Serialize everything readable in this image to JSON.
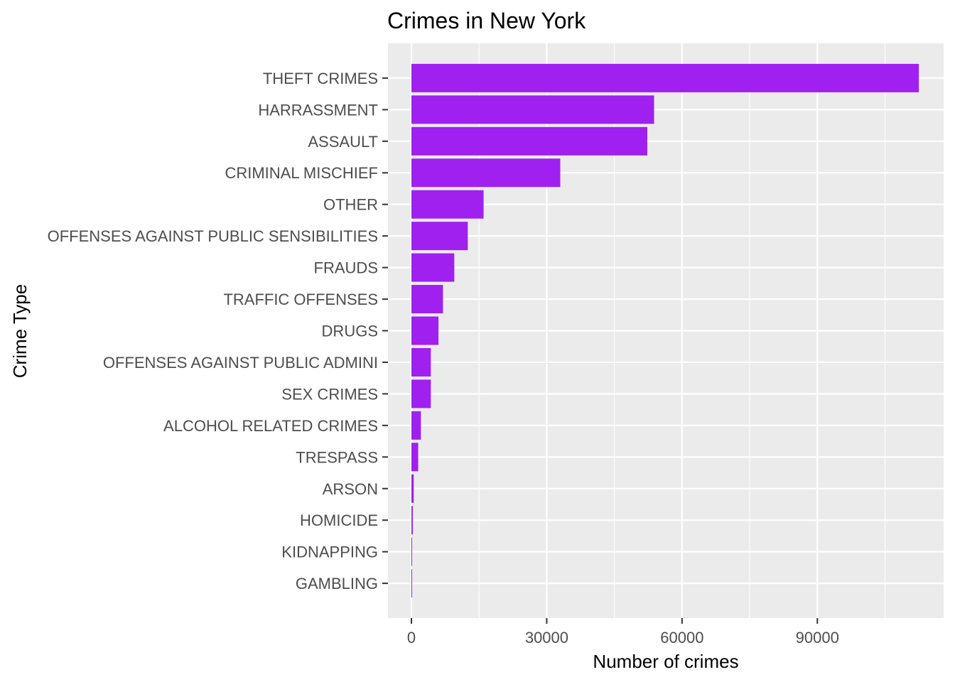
{
  "chart_data": {
    "type": "bar",
    "orientation": "horizontal",
    "title": "Crimes in New York",
    "xlabel": "Number of crimes",
    "ylabel": "Crime Type",
    "categories": [
      "THEFT CRIMES",
      "HARRASSMENT",
      "ASSAULT",
      "CRIMINAL MISCHIEF",
      "OTHER",
      "OFFENSES AGAINST PUBLIC SENSIBILITIES",
      "FRAUDS",
      "TRAFFIC OFFENSES",
      "DRUGS",
      "OFFENSES AGAINST PUBLIC ADMINI",
      "SEX CRIMES",
      "ALCOHOL RELATED CRIMES",
      "TRESPASS",
      "ARSON",
      "HOMICIDE",
      "KIDNAPPING",
      "GAMBLING"
    ],
    "values": [
      112500,
      53800,
      52300,
      33000,
      16000,
      12500,
      9500,
      7000,
      6000,
      4300,
      4300,
      2100,
      1500,
      500,
      300,
      150,
      100
    ],
    "xlim": [
      -5200,
      118000
    ],
    "xticks": [
      0,
      30000,
      60000,
      90000
    ],
    "xtick_labels": [
      "0",
      "30000",
      "60000",
      "90000"
    ],
    "bar_color": "#A020F0",
    "panel_background": "#EBEBEB",
    "grid_color": "#FFFFFF",
    "grid": true,
    "legend": "none"
  }
}
